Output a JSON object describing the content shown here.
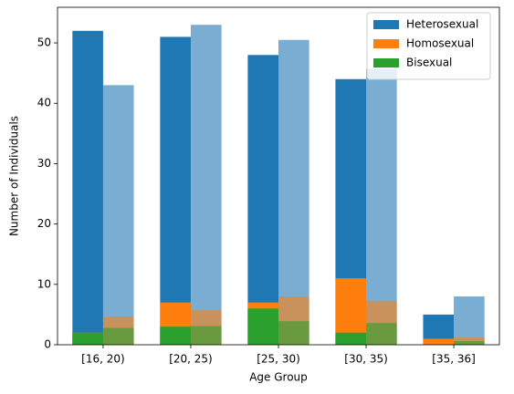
{
  "chart_data": {
    "type": "bar",
    "xlabel": "Age Group",
    "ylabel": "Number of Individuals",
    "categories": [
      "[16, 20)",
      "[20, 25)",
      "[25, 30)",
      "[30, 35)",
      "[35, 36]"
    ],
    "series": [
      {
        "name": "Heterosexual",
        "color": "#1f77b4",
        "values": [
          52,
          51,
          48,
          44,
          5
        ],
        "values_second": [
          43,
          53,
          50.5,
          45.7,
          8
        ]
      },
      {
        "name": "Homosexual",
        "color": "#ff7f0e",
        "values": [
          2,
          7,
          7,
          11,
          1
        ],
        "values_second": [
          4.6,
          5.7,
          8,
          7.2,
          1.2
        ]
      },
      {
        "name": "Bisexual",
        "color": "#2ca02c",
        "values": [
          2,
          3,
          6,
          2,
          0
        ],
        "values_second": [
          2.8,
          3.1,
          3.9,
          3.6,
          0.6
        ]
      }
    ],
    "second_opacity": 0.6,
    "ylim": [
      0,
      55.9
    ],
    "yticks": [
      0,
      10,
      20,
      30,
      40,
      50
    ],
    "legend": "upper right"
  }
}
